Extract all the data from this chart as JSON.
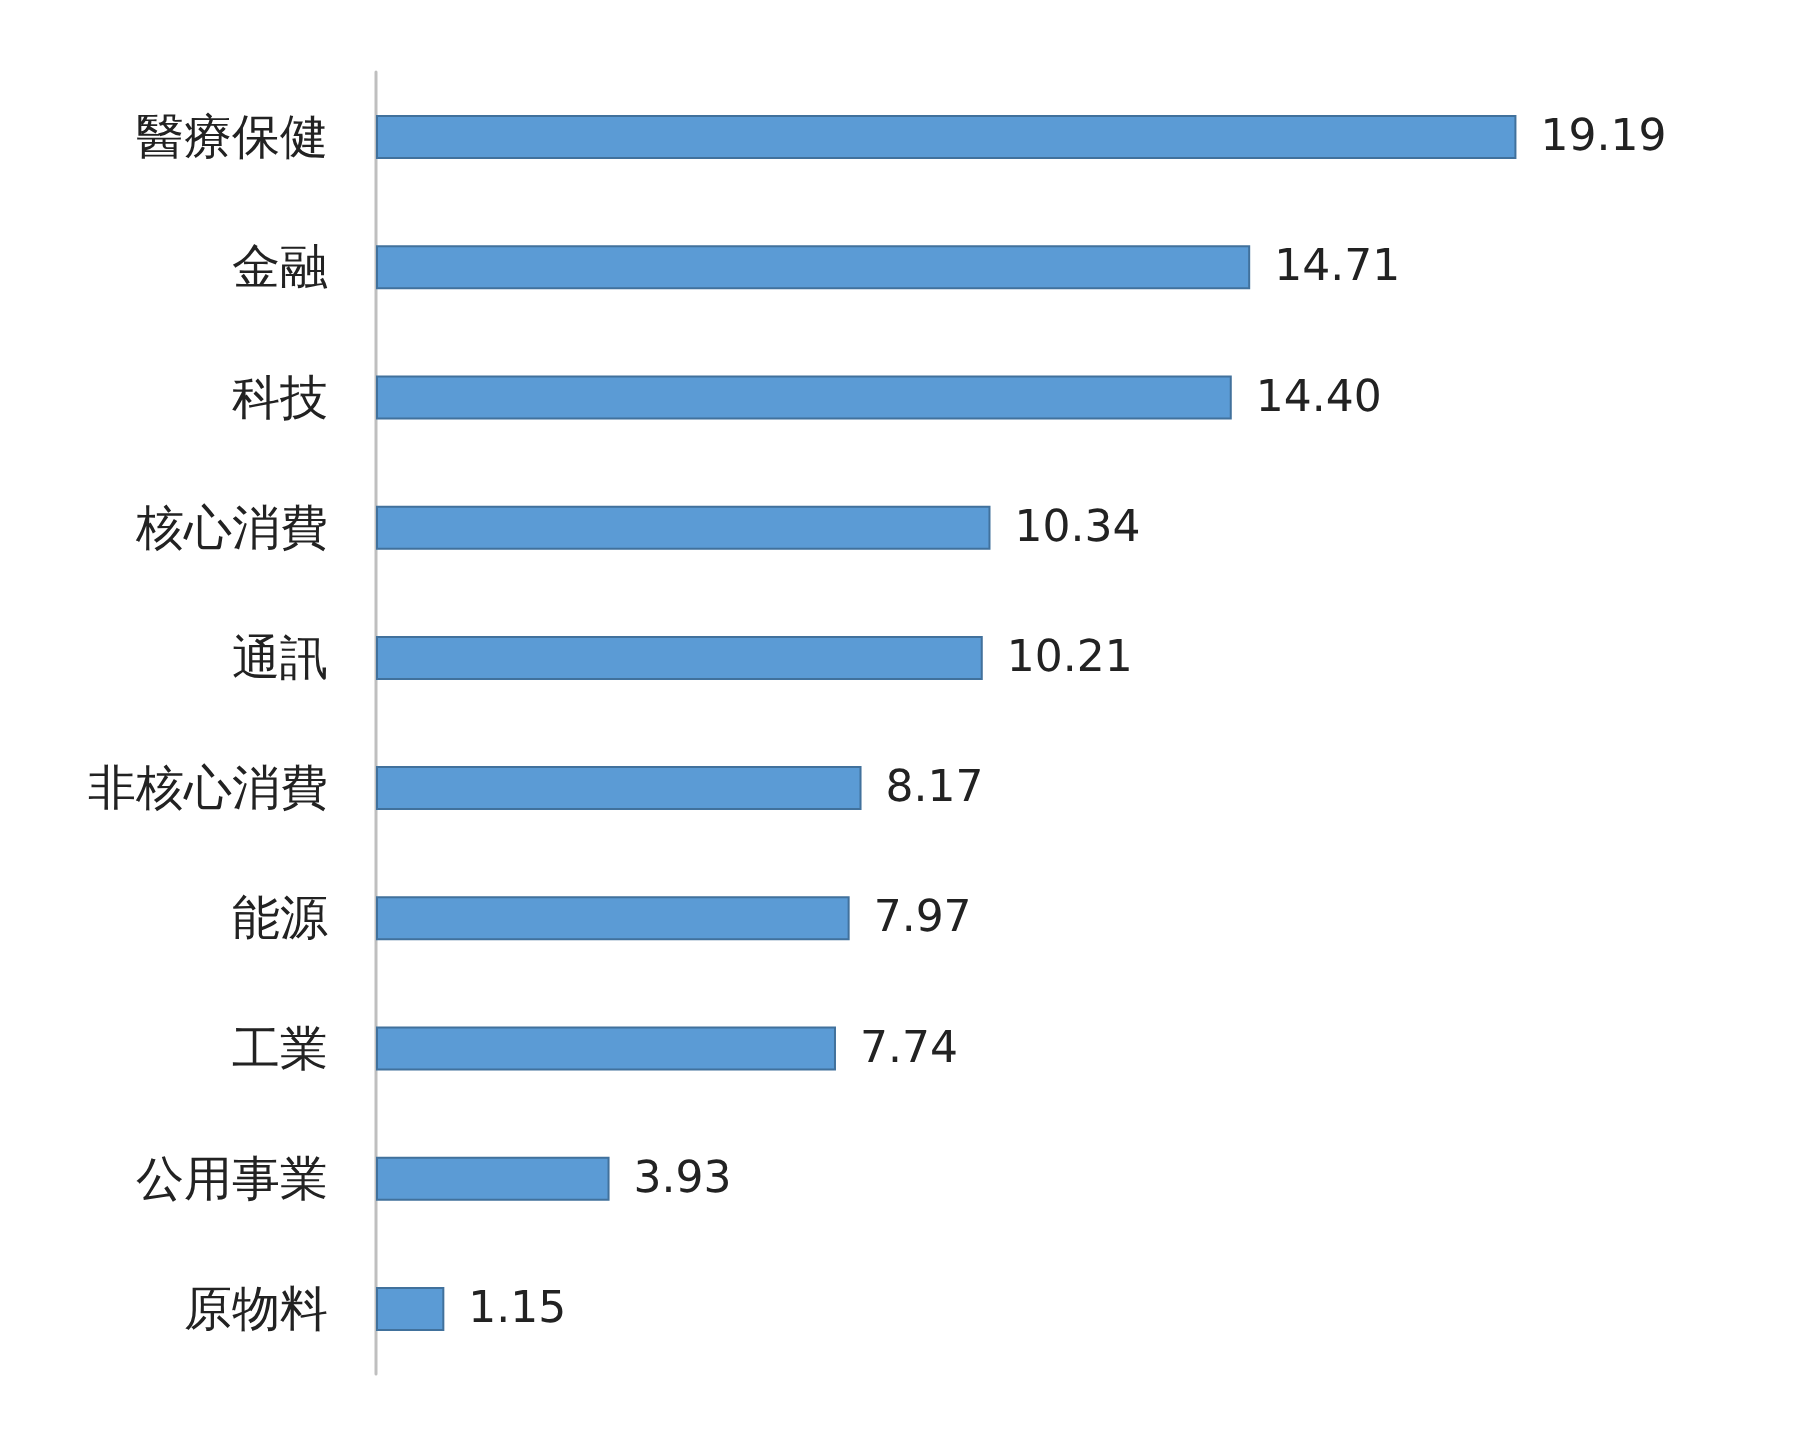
{
  "chart_data": {
    "type": "bar",
    "orientation": "horizontal",
    "categories": [
      "醫療保健",
      "金融",
      "科技",
      "核心消費",
      "通訊",
      "非核心消費",
      "能源",
      "工業",
      "公用事業",
      "原物料"
    ],
    "values": [
      19.19,
      14.71,
      14.4,
      10.34,
      10.21,
      8.17,
      7.97,
      7.74,
      3.93,
      1.15
    ],
    "value_labels": [
      "19.19",
      "14.71",
      "14.40",
      "10.34",
      "10.21",
      "8.17",
      "7.97",
      "7.74",
      "3.93",
      "1.15"
    ],
    "color": "#5b9bd5"
  }
}
